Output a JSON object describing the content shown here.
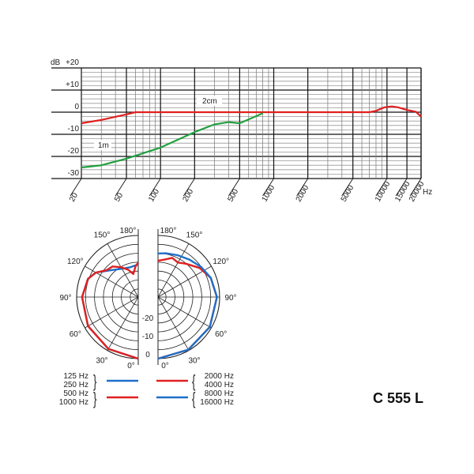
{
  "model": "C 555 L",
  "chart_data": [
    {
      "type": "line",
      "ylabel": "dB",
      "xlabel": "Hz",
      "x_scale": "log",
      "xlim": [
        20,
        20000
      ],
      "ylim": [
        -30,
        20
      ],
      "grid": true,
      "x_ticks": [
        "20",
        "50",
        "100",
        "200",
        "500",
        "1000",
        "2000",
        "5000",
        "10000",
        "15000",
        "20000"
      ],
      "y_ticks": [
        "+20",
        "+10",
        "0",
        "-10",
        "-20",
        "-30"
      ],
      "series": [
        {
          "name": "2cm",
          "color": "#e02020",
          "points": [
            [
              20,
              -5
            ],
            [
              30,
              -3.5
            ],
            [
              50,
              -1
            ],
            [
              60,
              0
            ],
            [
              7000,
              0
            ],
            [
              8000,
              0.6
            ],
            [
              9500,
              2.2
            ],
            [
              11000,
              2.6
            ],
            [
              12500,
              2.2
            ],
            [
              15000,
              1
            ],
            [
              18000,
              0.2
            ],
            [
              20000,
              -2
            ]
          ]
        },
        {
          "name": "1m",
          "color": "#22a040",
          "points": [
            [
              20,
              -25
            ],
            [
              30,
              -24
            ],
            [
              50,
              -21
            ],
            [
              100,
              -16
            ],
            [
              200,
              -9
            ],
            [
              300,
              -5.5
            ],
            [
              400,
              -4.5
            ],
            [
              500,
              -5
            ],
            [
              650,
              -2.5
            ],
            [
              800,
              -0.5
            ]
          ]
        }
      ]
    },
    {
      "type": "polar",
      "angle_labels": [
        "180°",
        "150°",
        "120°",
        "90°",
        "60°",
        "30°",
        "0°"
      ],
      "radial_labels": [
        "0",
        "-10",
        "-20"
      ],
      "rlim": [
        -34,
        0
      ],
      "legend": {
        "left_groups": [
          [
            "125 Hz",
            "250 Hz"
          ],
          [
            "500 Hz",
            "1000 Hz"
          ]
        ],
        "right_groups": [
          [
            "2000 Hz",
            "4000 Hz"
          ],
          [
            "8000 Hz",
            "16000 Hz"
          ]
        ]
      },
      "series": [
        {
          "name": "125 Hz / 250 Hz",
          "side": "left",
          "color": "#1e6fc8",
          "points": [
            [
              0,
              0
            ],
            [
              30,
              -1
            ],
            [
              60,
              -2
            ],
            [
              90,
              -3
            ],
            [
              110,
              -4.5
            ],
            [
              120,
              -7
            ],
            [
              135,
              -13
            ],
            [
              150,
              -16
            ],
            [
              165,
              -17
            ],
            [
              180,
              -16
            ]
          ]
        },
        {
          "name": "500 Hz / 1000 Hz",
          "side": "left",
          "color": "#e02020",
          "points": [
            [
              0,
              0
            ],
            [
              30,
              -1
            ],
            [
              60,
              -2
            ],
            [
              90,
              -3
            ],
            [
              110,
              -4.5
            ],
            [
              120,
              -7
            ],
            [
              130,
              -11
            ],
            [
              140,
              -12
            ],
            [
              150,
              -15
            ],
            [
              160,
              -18
            ],
            [
              168,
              -21
            ],
            [
              175,
              -17
            ],
            [
              180,
              -15
            ]
          ]
        },
        {
          "name": "2000 Hz / 4000 Hz",
          "side": "right",
          "color": "#e02020",
          "points": [
            [
              0,
              0
            ],
            [
              30,
              -0.5
            ],
            [
              60,
              -1
            ],
            [
              90,
              -1.5
            ],
            [
              110,
              -3
            ],
            [
              125,
              -6
            ],
            [
              140,
              -10
            ],
            [
              150,
              -12
            ],
            [
              160,
              -11
            ],
            [
              170,
              -13
            ],
            [
              180,
              -14
            ]
          ]
        },
        {
          "name": "8000 Hz / 16000 Hz",
          "side": "right",
          "color": "#1e6fc8",
          "points": [
            [
              0,
              0
            ],
            [
              30,
              -0.5
            ],
            [
              60,
              -1
            ],
            [
              90,
              -1.5
            ],
            [
              110,
              -3
            ],
            [
              125,
              -5
            ],
            [
              140,
              -7
            ],
            [
              155,
              -8.5
            ],
            [
              170,
              -9.5
            ],
            [
              180,
              -10
            ]
          ]
        }
      ]
    }
  ]
}
